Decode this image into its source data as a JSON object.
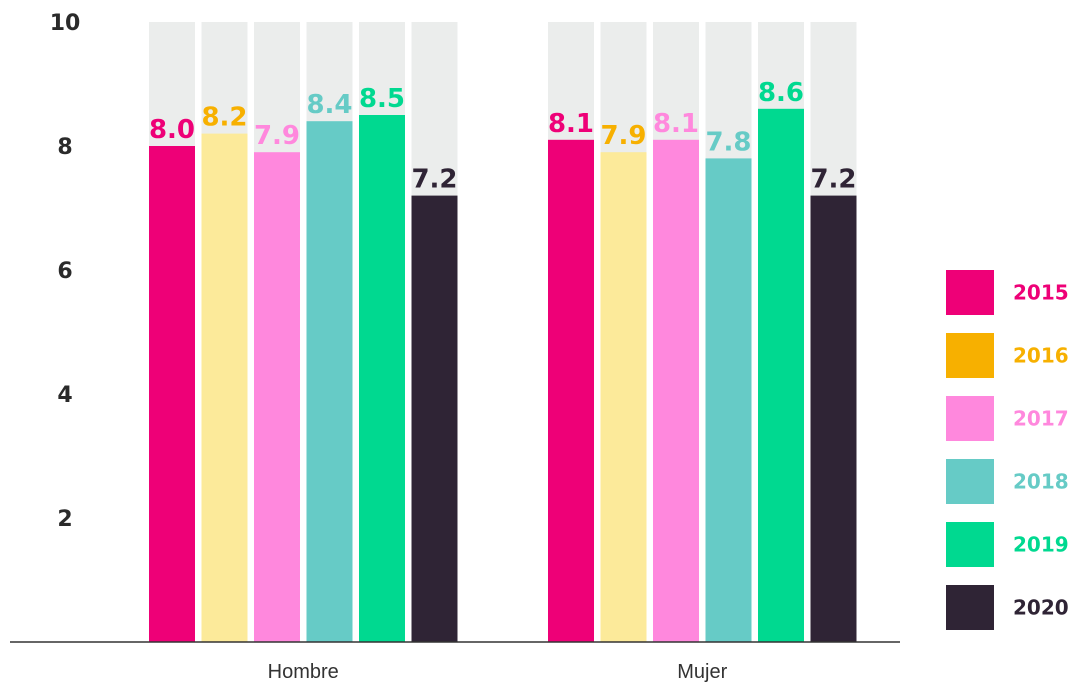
{
  "chart_data": {
    "type": "bar",
    "categories": [
      "Hombre",
      "Mujer"
    ],
    "series": [
      {
        "name": "2015",
        "color": "#ee0077",
        "label_color": "#ee0077",
        "values": [
          8.0,
          8.1
        ],
        "labels": [
          "8.0",
          "8.1"
        ]
      },
      {
        "name": "2016",
        "color": "#fcea9a",
        "label_color": "#f7b000",
        "legend_color": "#f7b000",
        "values": [
          8.2,
          7.9
        ],
        "labels": [
          "8.2",
          "7.9"
        ]
      },
      {
        "name": "2017",
        "color": "#ff88dd",
        "label_color": "#ff88dd",
        "values": [
          7.9,
          8.1
        ],
        "labels": [
          "7.9",
          "8.1"
        ]
      },
      {
        "name": "2018",
        "color": "#66cbc6",
        "label_color": "#66cbc6",
        "values": [
          8.4,
          7.8
        ],
        "labels": [
          "8.4",
          "7.8"
        ]
      },
      {
        "name": "2019",
        "color": "#00d990",
        "label_color": "#00d990",
        "values": [
          8.5,
          8.6
        ],
        "labels": [
          "8.5",
          "8.6"
        ]
      },
      {
        "name": "2020",
        "color": "#2f2435",
        "label_color": "#2f2435",
        "values": [
          7.2,
          7.2
        ],
        "labels": [
          "7.2",
          "7.2"
        ]
      }
    ],
    "yticks": [
      "2",
      "4",
      "6",
      "8",
      "10"
    ],
    "ylim": [
      0,
      10
    ],
    "background_bar_color": "#ebedec",
    "legend_position": "right",
    "title": "",
    "xlabel": "",
    "ylabel": ""
  }
}
